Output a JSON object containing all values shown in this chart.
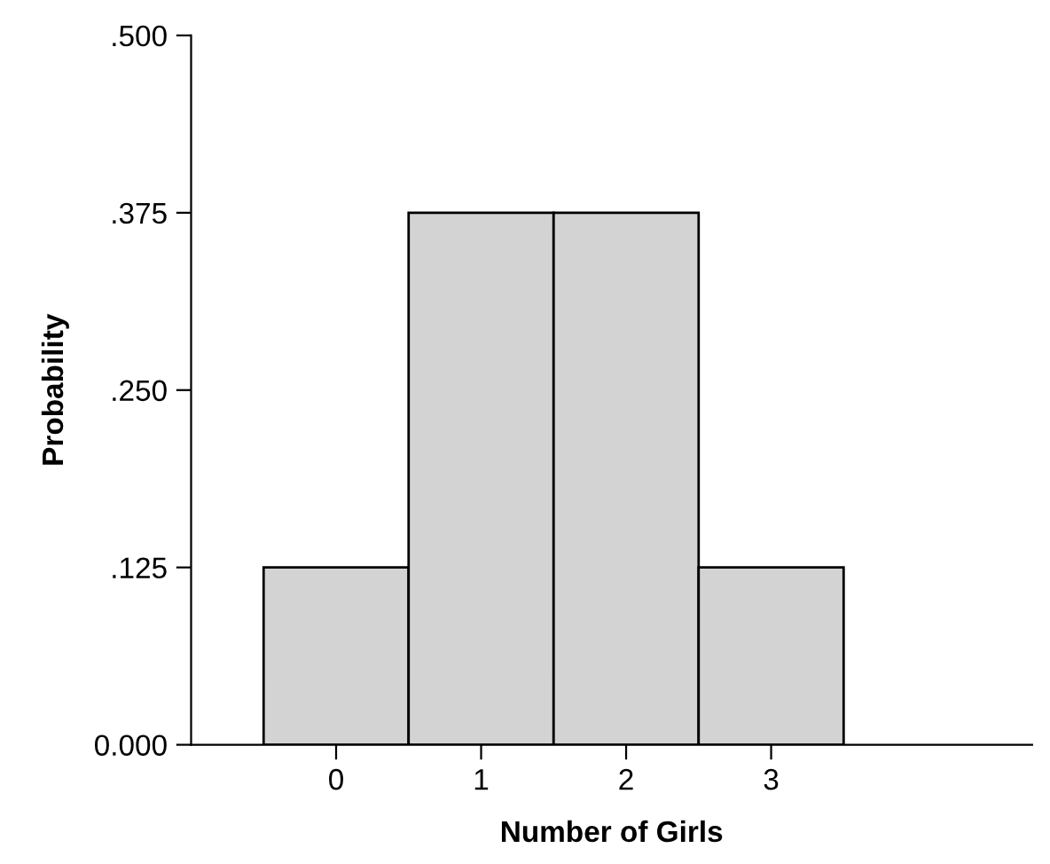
{
  "chart_data": {
    "type": "bar",
    "xlabel": "Number of Girls",
    "ylabel": "Probability",
    "categories": [
      "0",
      "1",
      "2",
      "3"
    ],
    "values": [
      0.125,
      0.375,
      0.375,
      0.125
    ],
    "color": "#d3d3d3",
    "ylim": [
      0,
      0.5
    ],
    "yticks": [
      {
        "value": 0,
        "label": "0.000"
      },
      {
        "value": 0.125,
        "label": ".125"
      },
      {
        "value": 0.25,
        "label": ".250"
      },
      {
        "value": 0.375,
        "label": ".375"
      },
      {
        "value": 0.5,
        "label": ".500"
      }
    ],
    "grid": false
  }
}
